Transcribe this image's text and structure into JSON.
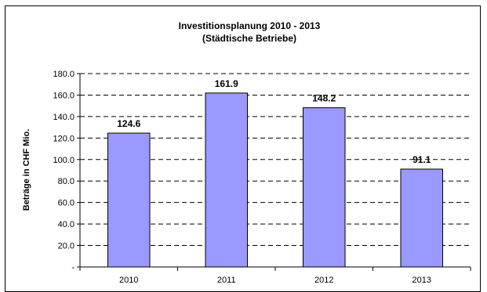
{
  "chart_data": {
    "type": "bar",
    "title": "Investitionsplanung 2010 - 2013",
    "subtitle": "(Städtische Betriebe)",
    "xlabel": "",
    "ylabel": "Beträge in CHF Mio.",
    "categories": [
      "2010",
      "2011",
      "2012",
      "2013"
    ],
    "values": [
      124.6,
      161.9,
      148.2,
      91.1
    ],
    "data_labels": [
      "124.6",
      "161.9",
      "148.2",
      "91.1"
    ],
    "ylim": [
      0,
      180
    ],
    "yticks": [
      0,
      20,
      40,
      60,
      80,
      100,
      120,
      140,
      160,
      180
    ],
    "ytick_labels": [
      "-",
      "20.0",
      "40.0",
      "60.0",
      "80.0",
      "100.0",
      "120.0",
      "140.0",
      "160.0",
      "180.0"
    ],
    "grid": true,
    "legend": "none",
    "bar_color": "#9999FF",
    "bar_edge_color": "#000000"
  }
}
